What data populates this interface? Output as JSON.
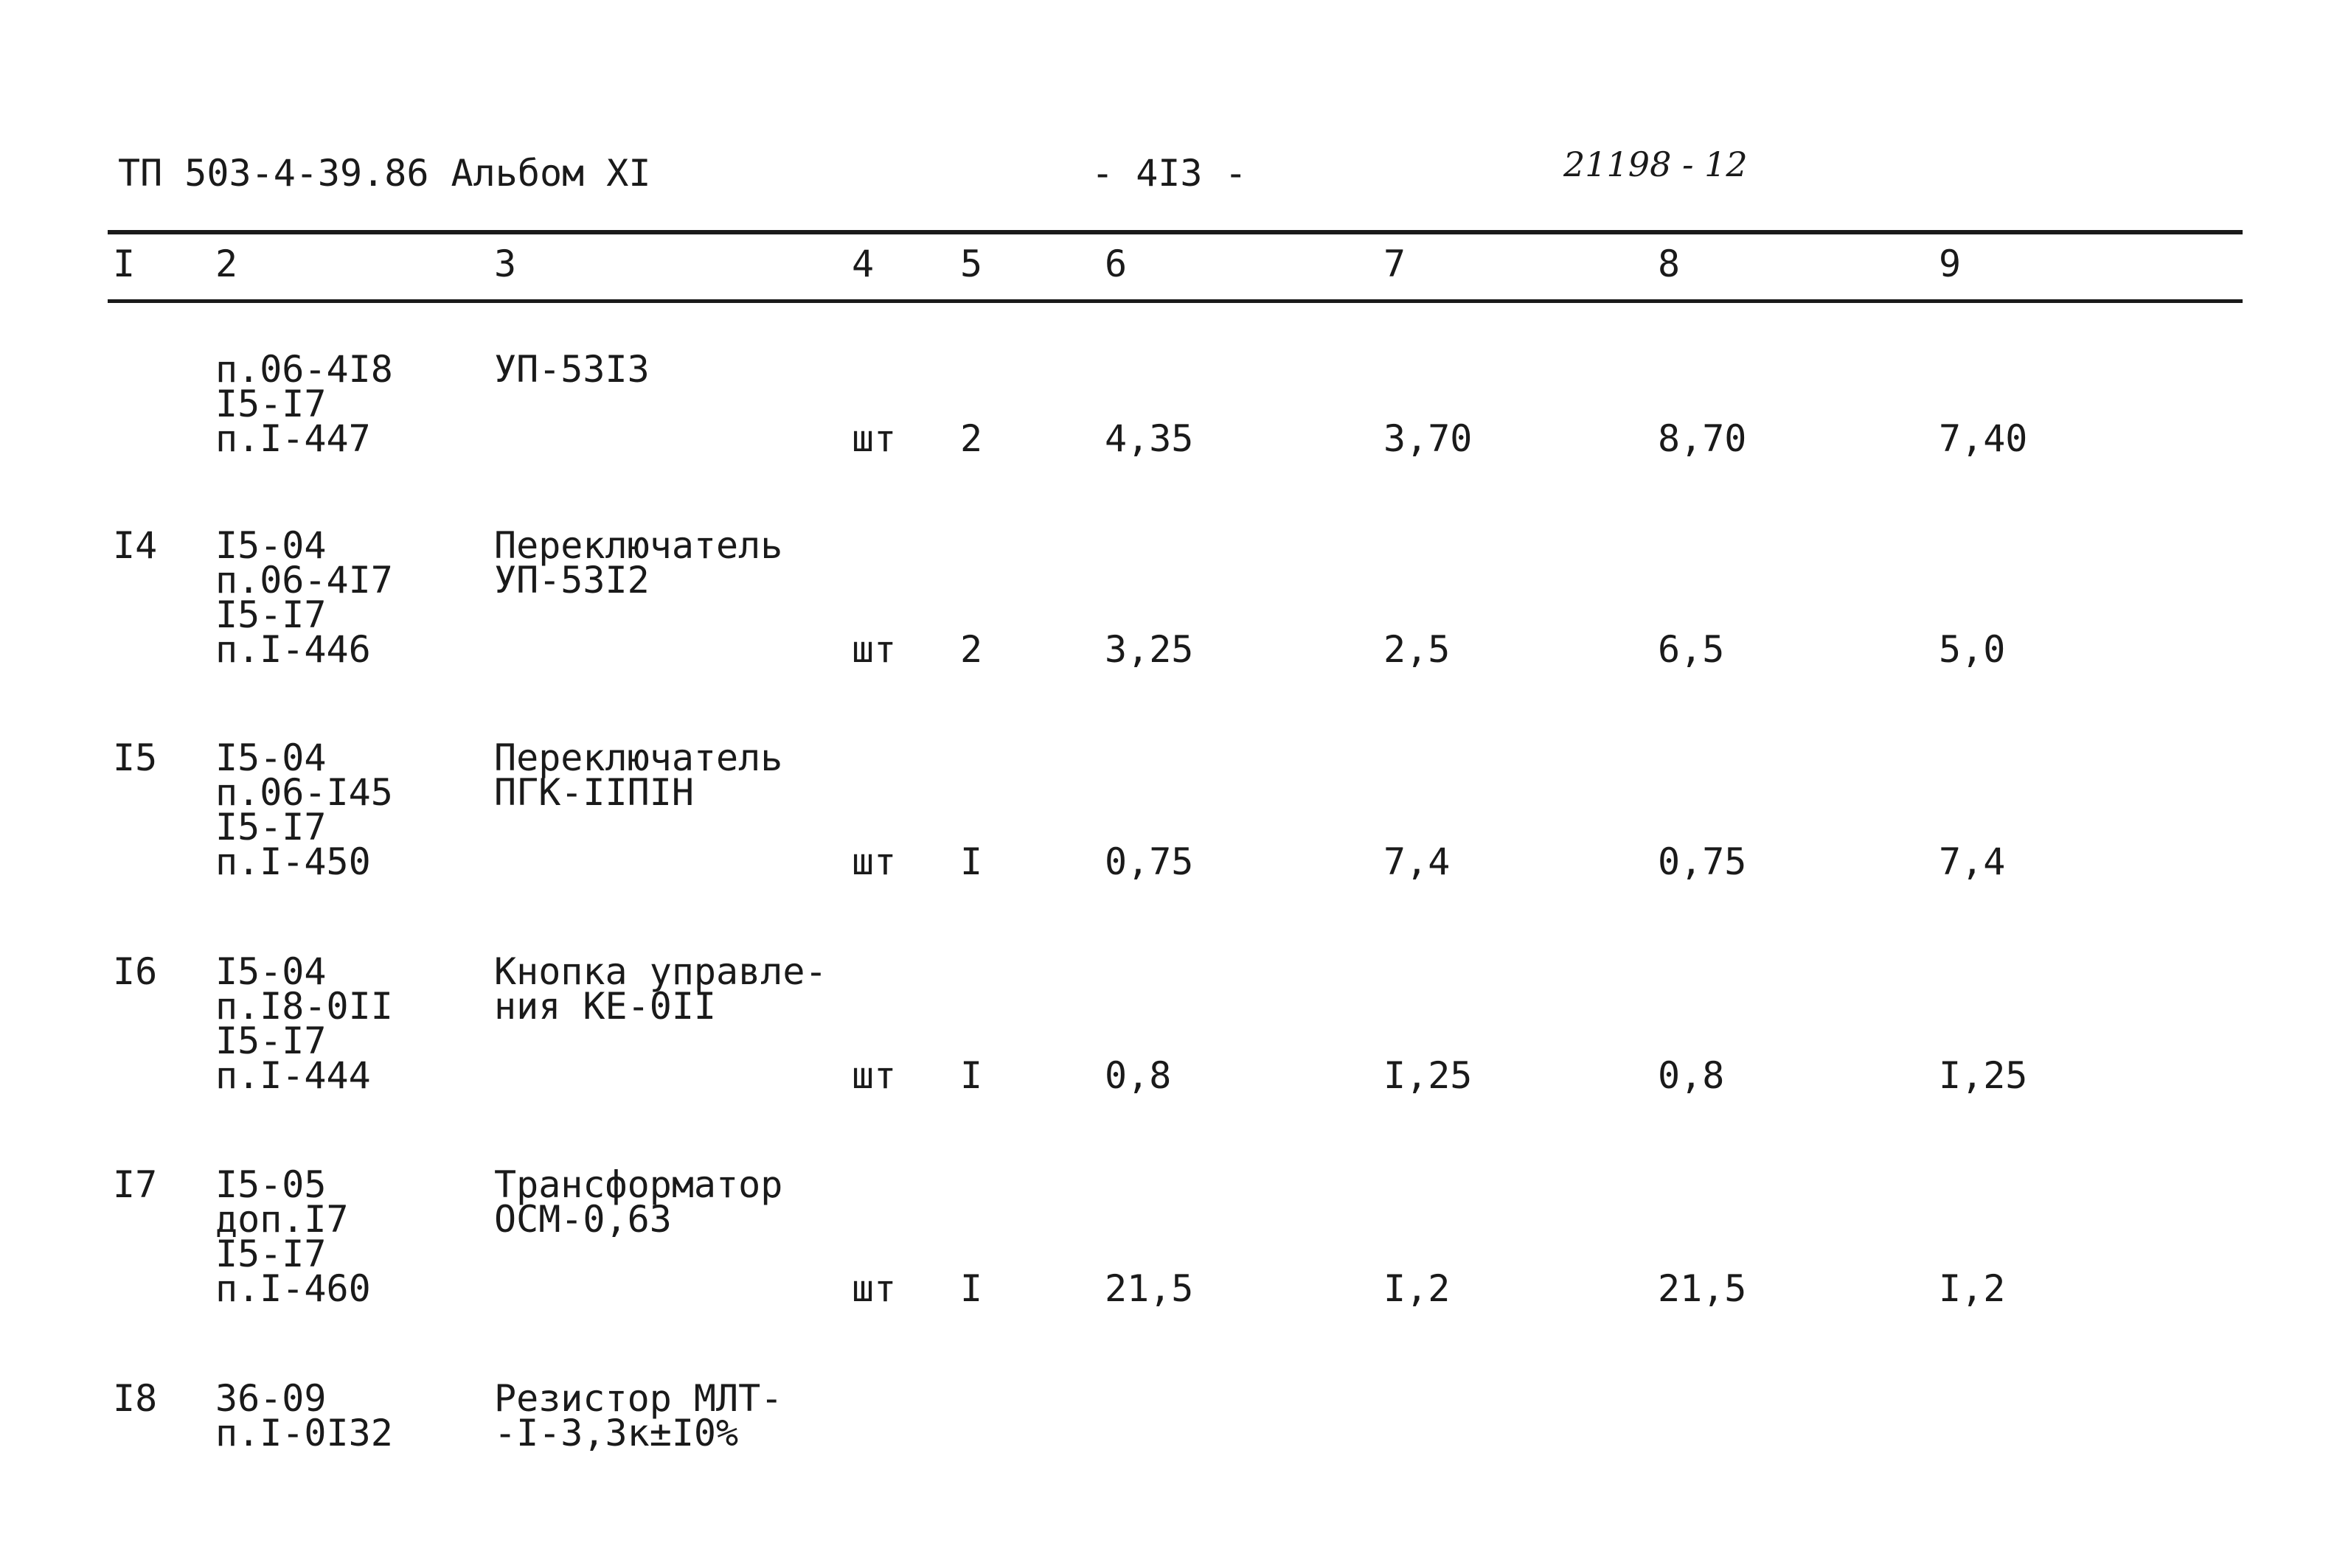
{
  "header": {
    "left": "ТП 503-4-39.86 Альбом XI",
    "page": "- 4I3 -",
    "right": "21198 - 12"
  },
  "table": {
    "columns": [
      "I",
      "2",
      "3",
      "4",
      "5",
      "6",
      "7",
      "8",
      "9"
    ],
    "rows": [
      {
        "code": [
          "п.06-4I8",
          "I5-I7",
          "п.I-447"
        ],
        "name": [
          "УП-53I3"
        ],
        "unit": "шт",
        "qty": "2",
        "c6": "4,35",
        "c7": "3,70",
        "c8": "8,70",
        "c9": "7,40"
      },
      {
        "num": "I4",
        "code": [
          "I5-04",
          "п.06-4I7",
          "I5-I7",
          "п.I-446"
        ],
        "name": [
          "Переключатель",
          "УП-53I2"
        ],
        "unit": "шт",
        "qty": "2",
        "c6": "3,25",
        "c7": "2,5",
        "c8": "6,5",
        "c9": "5,0"
      },
      {
        "num": "I5",
        "code": [
          "I5-04",
          "п.06-I45",
          "I5-I7",
          "п.I-450"
        ],
        "name": [
          "Переключатель",
          "ПГК-IIПIН"
        ],
        "unit": "шт",
        "qty": "I",
        "c6": "0,75",
        "c7": "7,4",
        "c8": "0,75",
        "c9": "7,4"
      },
      {
        "num": "I6",
        "code": [
          "I5-04",
          "п.I8-0II",
          "I5-I7",
          "п.I-444"
        ],
        "name": [
          "Кнопка управле-",
          "ния КЕ-0II"
        ],
        "unit": "шт",
        "qty": "I",
        "c6": "0,8",
        "c7": "I,25",
        "c8": "0,8",
        "c9": "I,25"
      },
      {
        "num": "I7",
        "code": [
          "I5-05",
          "доп.I7",
          "I5-I7",
          "п.I-460"
        ],
        "name": [
          "Трансформатор",
          "ОСМ-0,63"
        ],
        "unit": "шт",
        "qty": "I",
        "c6": "21,5",
        "c7": "I,2",
        "c8": "21,5",
        "c9": "I,2"
      },
      {
        "num": "I8",
        "code": [
          "36-09",
          "п.I-0I32"
        ],
        "name": [
          "Резистор МЛТ-",
          "-I-3,3к±I0%"
        ]
      }
    ]
  }
}
